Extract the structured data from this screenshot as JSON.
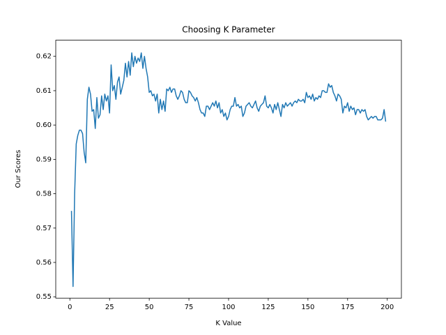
{
  "chart_data": {
    "type": "line",
    "title": "Choosing K Parameter",
    "x_label": "K Value",
    "y_label": "Our Scores",
    "x": [
      1,
      2,
      3,
      4,
      5,
      6,
      7,
      8,
      9,
      10,
      11,
      12,
      13,
      14,
      15,
      16,
      17,
      18,
      19,
      20,
      21,
      22,
      23,
      24,
      25,
      26,
      27,
      28,
      29,
      30,
      31,
      32,
      33,
      34,
      35,
      36,
      37,
      38,
      39,
      40,
      41,
      42,
      43,
      44,
      45,
      46,
      47,
      48,
      49,
      50,
      51,
      52,
      53,
      54,
      55,
      56,
      57,
      58,
      59,
      60,
      61,
      62,
      63,
      64,
      65,
      66,
      67,
      68,
      69,
      70,
      71,
      72,
      73,
      74,
      75,
      76,
      77,
      78,
      79,
      80,
      81,
      82,
      83,
      84,
      85,
      86,
      87,
      88,
      89,
      90,
      91,
      92,
      93,
      94,
      95,
      96,
      97,
      98,
      99,
      100,
      101,
      102,
      103,
      104,
      105,
      106,
      107,
      108,
      109,
      110,
      111,
      112,
      113,
      114,
      115,
      116,
      117,
      118,
      119,
      120,
      121,
      122,
      123,
      124,
      125,
      126,
      127,
      128,
      129,
      130,
      131,
      132,
      133,
      134,
      135,
      136,
      137,
      138,
      139,
      140,
      141,
      142,
      143,
      144,
      145,
      146,
      147,
      148,
      149,
      150,
      151,
      152,
      153,
      154,
      155,
      156,
      157,
      158,
      159,
      160,
      161,
      162,
      163,
      164,
      165,
      166,
      167,
      168,
      169,
      170,
      171,
      172,
      173,
      174,
      175,
      176,
      177,
      178,
      179,
      180,
      181,
      182,
      183,
      184,
      185,
      186,
      187,
      188,
      189,
      190,
      191,
      192,
      193,
      194,
      195,
      196,
      197,
      198,
      199
    ],
    "series": [
      {
        "color": "#1f77b4",
        "values": [
          0.575,
          0.553,
          0.58,
          0.5945,
          0.597,
          0.5985,
          0.5985,
          0.5975,
          0.592,
          0.589,
          0.6075,
          0.611,
          0.609,
          0.604,
          0.6045,
          0.599,
          0.608,
          0.602,
          0.603,
          0.6085,
          0.6045,
          0.609,
          0.607,
          0.6085,
          0.6035,
          0.6175,
          0.61,
          0.6115,
          0.6075,
          0.6125,
          0.614,
          0.609,
          0.611,
          0.613,
          0.618,
          0.614,
          0.6185,
          0.6145,
          0.621,
          0.617,
          0.62,
          0.618,
          0.6195,
          0.6185,
          0.621,
          0.6165,
          0.62,
          0.6165,
          0.614,
          0.6095,
          0.61,
          0.6085,
          0.609,
          0.607,
          0.609,
          0.6035,
          0.6075,
          0.6045,
          0.607,
          0.604,
          0.6105,
          0.61,
          0.611,
          0.6095,
          0.6105,
          0.6105,
          0.6085,
          0.6075,
          0.6085,
          0.61,
          0.6095,
          0.6075,
          0.6065,
          0.6065,
          0.61,
          0.6095,
          0.6085,
          0.608,
          0.607,
          0.608,
          0.6065,
          0.6045,
          0.6035,
          0.6035,
          0.6025,
          0.6055,
          0.6055,
          0.6045,
          0.6055,
          0.6065,
          0.6055,
          0.607,
          0.605,
          0.6065,
          0.6035,
          0.6045,
          0.6025,
          0.6035,
          0.6015,
          0.6025,
          0.6045,
          0.6055,
          0.6055,
          0.608,
          0.6055,
          0.606,
          0.605,
          0.6055,
          0.6025,
          0.6035,
          0.6055,
          0.606,
          0.6065,
          0.6055,
          0.605,
          0.606,
          0.607,
          0.605,
          0.604,
          0.6055,
          0.606,
          0.6065,
          0.6085,
          0.6055,
          0.605,
          0.606,
          0.605,
          0.6035,
          0.606,
          0.6045,
          0.6065,
          0.6045,
          0.6025,
          0.606,
          0.605,
          0.6065,
          0.6055,
          0.606,
          0.6065,
          0.6055,
          0.6065,
          0.607,
          0.6065,
          0.6075,
          0.607,
          0.607,
          0.6075,
          0.6065,
          0.6095,
          0.608,
          0.6085,
          0.6075,
          0.609,
          0.607,
          0.608,
          0.6075,
          0.6085,
          0.608,
          0.61,
          0.61,
          0.6095,
          0.6095,
          0.612,
          0.611,
          0.6115,
          0.6095,
          0.6085,
          0.607,
          0.609,
          0.6085,
          0.6075,
          0.6035,
          0.6055,
          0.605,
          0.6065,
          0.604,
          0.6055,
          0.6045,
          0.605,
          0.603,
          0.6045,
          0.6045,
          0.6035,
          0.6045,
          0.604,
          0.6045,
          0.6025,
          0.6015,
          0.602,
          0.6025,
          0.602,
          0.6025,
          0.6025,
          0.6015,
          0.6015,
          0.6015,
          0.602,
          0.6045,
          0.601
        ]
      }
    ],
    "xlim": [
      -8.9,
      208.9
    ],
    "xticks": [
      0,
      25,
      50,
      75,
      100,
      125,
      150,
      175,
      200
    ],
    "ylim": [
      0.5496,
      0.6247
    ],
    "yticks": [
      0.55,
      0.56,
      0.57,
      0.58,
      0.59,
      {
        "value": 0.6,
        "label": "0.60"
      },
      0.61,
      0.62
    ]
  }
}
